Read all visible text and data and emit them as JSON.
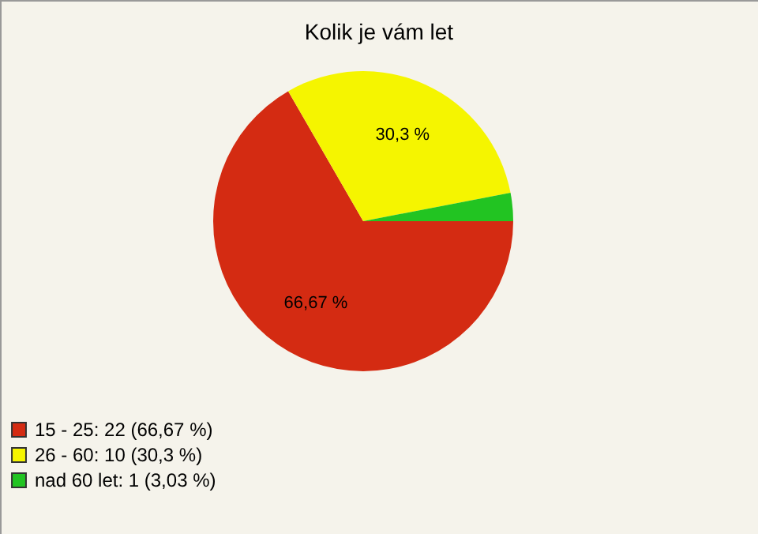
{
  "chart_data": {
    "type": "pie",
    "title": "Kolik je vám let",
    "categories": [
      "15 - 25: 22 (66,67 %)",
      "26 - 60: 10 (30,3 %)",
      "nad 60 let: 1 (3,03 %)"
    ],
    "values": [
      66.67,
      30.3,
      3.03
    ],
    "colors": [
      "#d42b12",
      "#f5f500",
      "#22c422"
    ],
    "value_labels": [
      "66,67 %",
      "30,3 %",
      null
    ],
    "legend": "bottom left"
  }
}
